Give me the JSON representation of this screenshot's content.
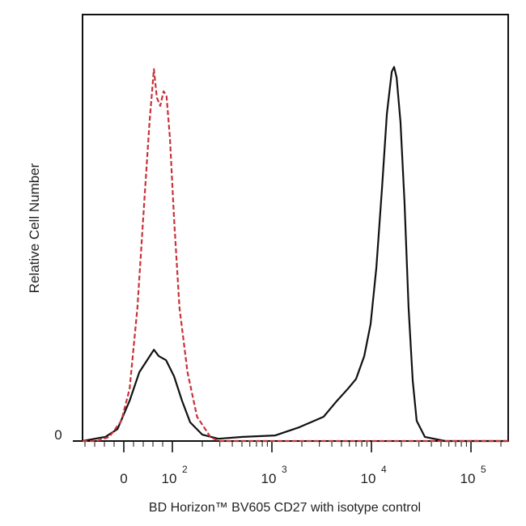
{
  "chart_data": {
    "type": "line",
    "title": "",
    "xlabel": "BD Horizon™ BV605 CD27 with isotype control",
    "ylabel": "Relative Cell Number",
    "x_scale": "biexponential",
    "xlim": [
      -85,
      237000
    ],
    "ylim": [
      0,
      114
    ],
    "x_ticks": [
      {
        "value": 0,
        "base": "0",
        "exp": ""
      },
      {
        "value": 100,
        "base": "10",
        "exp": "2"
      },
      {
        "value": 1000,
        "base": "10",
        "exp": "3"
      },
      {
        "value": 10000,
        "base": "10",
        "exp": "4"
      },
      {
        "value": 100000,
        "base": "10",
        "exp": "5"
      }
    ],
    "y_ticks": [
      {
        "value": 0,
        "label": "0"
      }
    ],
    "grid": false,
    "series": [
      {
        "name": "CD27",
        "color": "#111111",
        "dash": false,
        "x": [
          -85,
          -38,
          -13,
          12,
          32,
          48,
          62,
          72,
          87,
          104,
          125,
          151,
          200,
          290,
          509,
          1080,
          1890,
          3310,
          4390,
          5810,
          7010,
          8460,
          9820,
          11200,
          12800,
          14300,
          16000,
          16900,
          17900,
          19600,
          21500,
          23600,
          26000,
          28500,
          34400,
          55000,
          237000
        ],
        "y": [
          0,
          1.1,
          3.2,
          10.8,
          18.4,
          21.6,
          24.4,
          22.7,
          21.6,
          17.3,
          10.8,
          5,
          1.7,
          0.6,
          1.1,
          1.5,
          3.7,
          6.5,
          10.4,
          14,
          16.6,
          22.7,
          31.3,
          46.4,
          68,
          87.5,
          98.7,
          100,
          97.2,
          85.3,
          63.7,
          35.6,
          16.2,
          5.4,
          1.1,
          0,
          0
        ]
      },
      {
        "name": "Isotype control",
        "color": "#c8323a",
        "dash": true,
        "x": [
          -85,
          -55,
          -30,
          -5,
          12,
          28,
          42,
          53,
          62,
          68,
          75,
          82,
          88,
          95,
          104,
          118,
          142,
          177,
          241,
          290,
          237000
        ],
        "y": [
          0,
          0,
          1.1,
          5.4,
          14,
          35.6,
          63.7,
          85.3,
          99.4,
          91.8,
          89.6,
          93.5,
          92.2,
          81,
          59.4,
          35.6,
          18.4,
          6.5,
          1.1,
          0,
          0
        ]
      }
    ]
  }
}
